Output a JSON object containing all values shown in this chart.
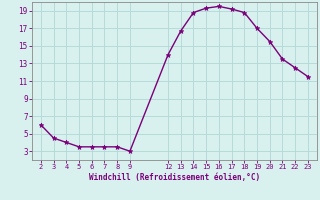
{
  "x": [
    2,
    3,
    4,
    5,
    6,
    7,
    8,
    9,
    12,
    13,
    14,
    15,
    16,
    17,
    18,
    19,
    20,
    21,
    22,
    23
  ],
  "y": [
    6.0,
    4.5,
    4.0,
    3.5,
    3.5,
    3.5,
    3.5,
    3.0,
    14.0,
    16.7,
    18.8,
    19.3,
    19.5,
    19.2,
    18.8,
    17.0,
    15.5,
    13.5,
    12.5,
    11.5
  ],
  "line_color": "#7b007b",
  "marker": "*",
  "marker_size": 3.5,
  "background_color": "#d8f0ee",
  "grid_color": "#b0d8d4",
  "xlabel": "Windchill (Refroidissement éolien,°C)",
  "xlabel_color": "#7b007b",
  "tick_color": "#7b007b",
  "ylim": [
    2,
    20
  ],
  "yticks": [
    3,
    5,
    7,
    9,
    11,
    13,
    15,
    17,
    19
  ],
  "xticks": [
    2,
    3,
    4,
    5,
    6,
    7,
    8,
    9,
    12,
    13,
    14,
    15,
    16,
    17,
    18,
    19,
    20,
    21,
    22,
    23
  ],
  "xlim": [
    1.3,
    23.7
  ],
  "axis_color": "#888888",
  "linewidth": 1.0
}
